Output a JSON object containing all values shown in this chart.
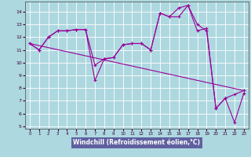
{
  "xlabel": "Windchill (Refroidissement éolien,°C)",
  "bg_color": "#aed8e0",
  "grid_color": "#ffffff",
  "line_color": "#990099",
  "xlabel_bg": "#6060a0",
  "xlabel_fg": "#ffffff",
  "line1_x": [
    0,
    1,
    2,
    3,
    4,
    5,
    6,
    7,
    8,
    9,
    10,
    11,
    12,
    13,
    14,
    15,
    16,
    17,
    18,
    19,
    20,
    21,
    22,
    23
  ],
  "line1_y": [
    11.5,
    11.0,
    12.0,
    12.5,
    12.5,
    12.6,
    12.6,
    8.6,
    10.3,
    10.4,
    11.4,
    11.5,
    11.5,
    11.0,
    13.9,
    13.6,
    13.6,
    14.5,
    12.5,
    12.7,
    6.4,
    7.2,
    5.3,
    7.6
  ],
  "line2_x": [
    0,
    1,
    2,
    3,
    4,
    5,
    6,
    7,
    8,
    9,
    10,
    11,
    12,
    13,
    14,
    15,
    16,
    17,
    18,
    19,
    20,
    21,
    22,
    23
  ],
  "line2_y": [
    11.5,
    11.0,
    12.0,
    12.5,
    12.5,
    12.6,
    12.6,
    9.8,
    10.3,
    10.4,
    11.4,
    11.5,
    11.5,
    11.0,
    13.9,
    13.6,
    14.3,
    14.5,
    13.0,
    12.5,
    6.4,
    7.2,
    7.5,
    7.8
  ],
  "trend_x": [
    0,
    23
  ],
  "trend_y": [
    11.5,
    7.8
  ],
  "ylim": [
    4.8,
    14.8
  ],
  "xlim": [
    -0.5,
    23.5
  ],
  "yticks": [
    5,
    6,
    7,
    8,
    9,
    10,
    11,
    12,
    13,
    14
  ],
  "xticks": [
    0,
    1,
    2,
    3,
    4,
    5,
    6,
    7,
    8,
    9,
    10,
    11,
    12,
    13,
    14,
    15,
    16,
    17,
    18,
    19,
    20,
    21,
    22,
    23
  ]
}
